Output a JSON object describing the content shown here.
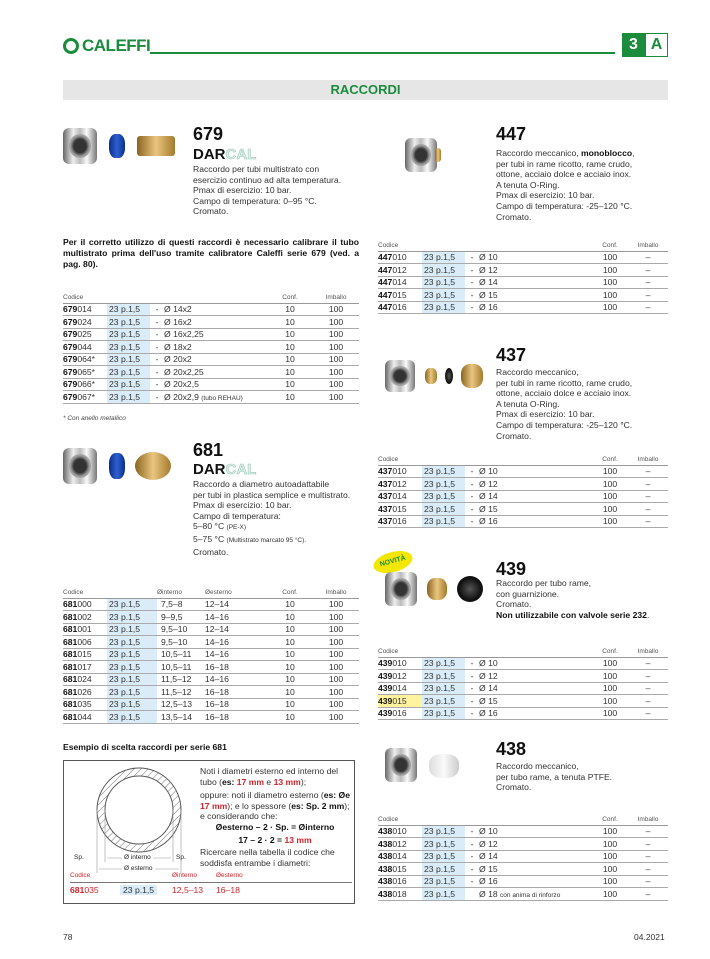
{
  "header": {
    "brand": "CALEFFI",
    "section_number": "3",
    "section_letter": "A",
    "band_title": "RACCORDI",
    "brand_color": "#1a8c3c"
  },
  "p679": {
    "number": "679",
    "brand_a": "DAR",
    "brand_b": "CAL",
    "desc": [
      "Raccordo per tubi multistrato con",
      "esercizio continuo ad alta temperatura.",
      "Pmax di esercizio: 10 bar.",
      "Campo di temperatura: 0–95 °C.",
      "Cromato."
    ],
    "note": "Per il corretto utilizzo di questi raccordi è necessario calibrare il tubo multistrato prima dell'uso tramite calibratore Caleffi serie 679 (ved. a pag. 80).",
    "headers": [
      "Codice",
      "Conf.",
      "Imballo"
    ],
    "rows": [
      [
        "679014",
        "23 p.1,5",
        "-",
        "Ø 14x2",
        "",
        "10",
        "100"
      ],
      [
        "679024",
        "23 p.1,5",
        "-",
        "Ø 16x2",
        "",
        "10",
        "100"
      ],
      [
        "679025",
        "23 p.1,5",
        "-",
        "Ø 16x2,25",
        "",
        "10",
        "100"
      ],
      [
        "679044",
        "23 p.1,5",
        "-",
        "Ø 18x2",
        "",
        "10",
        "100"
      ],
      [
        "679064*",
        "23 p.1,5",
        "-",
        "Ø 20x2",
        "",
        "10",
        "100"
      ],
      [
        "679065*",
        "23 p.1,5",
        "-",
        "Ø 20x2,25",
        "",
        "10",
        "100"
      ],
      [
        "679066*",
        "23 p.1,5",
        "-",
        "Ø 20x2,5",
        "",
        "10",
        "100"
      ],
      [
        "679067*",
        "23 p.1,5",
        "-",
        "Ø 20x2,9",
        "(tubo REHAU)",
        "10",
        "100"
      ]
    ],
    "footnote": "* Con anello metallico"
  },
  "p681": {
    "number": "681",
    "brand_a": "DAR",
    "brand_b": "CAL",
    "desc": [
      "Raccordo a diametro autoadattabile",
      "per tubi in plastica semplice e multistrato.",
      "Pmax di esercizio: 10 bar.",
      "Campo di temperatura:"
    ],
    "temp1": "5–80 °C",
    "temp1_note": "(PE-X)",
    "temp2": "5–75 °C",
    "temp2_note": "(Multistrato marcato 95 °C).",
    "cromato": "Cromato.",
    "headers": [
      "Codice",
      "Øinterno",
      "Øesterno",
      "Conf.",
      "Imballo"
    ],
    "rows": [
      [
        "681000",
        "23 p.1,5",
        "7,5–8",
        "12–14",
        "10",
        "100"
      ],
      [
        "681002",
        "23 p.1,5",
        "9–9,5",
        "14–16",
        "10",
        "100"
      ],
      [
        "681001",
        "23 p.1,5",
        "9,5–10",
        "12–14",
        "10",
        "100"
      ],
      [
        "681006",
        "23 p.1,5",
        "9,5–10",
        "14–16",
        "10",
        "100"
      ],
      [
        "681015",
        "23 p.1,5",
        "10,5–11",
        "14–16",
        "10",
        "100"
      ],
      [
        "681017",
        "23 p.1,5",
        "10,5–11",
        "16–18",
        "10",
        "100"
      ],
      [
        "681024",
        "23 p.1,5",
        "11,5–12",
        "14–16",
        "10",
        "100"
      ],
      [
        "681026",
        "23 p.1,5",
        "11,5–12",
        "16–18",
        "10",
        "100"
      ],
      [
        "681035",
        "23 p.1,5",
        "12,5–13",
        "16–18",
        "10",
        "100"
      ],
      [
        "681044",
        "23 p.1,5",
        "13,5–14",
        "16–18",
        "10",
        "100"
      ]
    ]
  },
  "example": {
    "title": "Esempio di scelta raccordi per serie 681",
    "l1": "Noti i diametri esterno ed interno del tubo (",
    "l1_es": "es:",
    "l1_a": "17 mm",
    "l1_e": " e ",
    "l1_b": "13 mm",
    "l1_end": ");",
    "l2": "oppure: noti il diametro esterno (",
    "l2_es": "es: Øe",
    "l2_a": "17 mm",
    "l2_mid": "); e lo spessore (",
    "l2_sp": "es: Sp. 2 mm",
    "l2_end": "); e considerando che:",
    "formula": "Øesterno – 2 · Sp. = Øinterno",
    "calc_a": "17 – 2 · 2 = ",
    "calc_b": "13 mm",
    "l3": "Ricercare nella tabella il codice che soddisfa entrambe i diametri:",
    "label_sp": "Sp.",
    "label_int": "Ø interno",
    "label_ext": "Ø esterno",
    "headers": [
      "Codice",
      "Øinterno",
      "Øesterno"
    ],
    "row": [
      "681035",
      "23 p.1,5",
      "12,5–13",
      "16–18"
    ]
  },
  "right": [
    {
      "number": "447",
      "desc_html": [
        "Raccordo meccanico, <b>monoblocco</b>,",
        "per tubi in rame ricotto, rame crudo,",
        "ottone, acciaio dolce e acciaio inox.",
        "A tenuta O-Ring.",
        "Pmax di esercizio: 10 bar.",
        "Campo di temperatura: -25–120 °C.",
        "Cromato."
      ],
      "rows": [
        [
          "447010",
          "23 p.1,5",
          "-",
          "Ø 10",
          "",
          "100",
          "–"
        ],
        [
          "447012",
          "23 p.1,5",
          "-",
          "Ø 12",
          "",
          "100",
          "–"
        ],
        [
          "447014",
          "23 p.1,5",
          "-",
          "Ø 14",
          "",
          "100",
          "–"
        ],
        [
          "447015",
          "23 p.1,5",
          "-",
          "Ø 15",
          "",
          "100",
          "–"
        ],
        [
          "447016",
          "23 p.1,5",
          "-",
          "Ø 16",
          "",
          "100",
          "–"
        ]
      ]
    },
    {
      "number": "437",
      "desc_html": [
        "Raccordo meccanico,",
        "per tubi in rame ricotto, rame crudo,",
        "ottone, acciaio dolce e acciaio inox.",
        "A tenuta O-Ring.",
        "Pmax di esercizio: 10 bar.",
        "Campo di temperatura: -25–120 °C.",
        "Cromato."
      ],
      "rows": [
        [
          "437010",
          "23 p.1,5",
          "-",
          "Ø 10",
          "",
          "100",
          "–"
        ],
        [
          "437012",
          "23 p.1,5",
          "-",
          "Ø 12",
          "",
          "100",
          "–"
        ],
        [
          "437014",
          "23 p.1,5",
          "-",
          "Ø 14",
          "",
          "100",
          "–"
        ],
        [
          "437015",
          "23 p.1,5",
          "-",
          "Ø 15",
          "",
          "100",
          "–"
        ],
        [
          "437016",
          "23 p.1,5",
          "-",
          "Ø 16",
          "",
          "100",
          "–"
        ]
      ]
    },
    {
      "number": "439",
      "badge": "NOVITÀ",
      "desc_html": [
        "Raccordo per tubo rame,",
        "con guarnizione.",
        "Cromato.",
        "<b>Non utilizzabile con valvole serie 232</b>."
      ],
      "rows": [
        [
          "439010",
          "23 p.1,5",
          "-",
          "Ø 10",
          "",
          "100",
          "–"
        ],
        [
          "439012",
          "23 p.1,5",
          "-",
          "Ø 12",
          "",
          "100",
          "–"
        ],
        [
          "439014",
          "23 p.1,5",
          "-",
          "Ø 14",
          "",
          "100",
          "–"
        ],
        [
          "439015",
          "23 p.1,5",
          "-",
          "Ø 15",
          "",
          "100",
          "–"
        ],
        [
          "439016",
          "23 p.1,5",
          "-",
          "Ø 16",
          "",
          "100",
          "–"
        ]
      ],
      "highlight_row": 3
    },
    {
      "number": "438",
      "desc_html": [
        "Raccordo meccanico,",
        "per tubo rame, a tenuta PTFE.",
        "Cromato."
      ],
      "rows": [
        [
          "438010",
          "23 p.1,5",
          "-",
          "Ø 10",
          "",
          "100",
          "–"
        ],
        [
          "438012",
          "23 p.1,5",
          "-",
          "Ø 12",
          "",
          "100",
          "–"
        ],
        [
          "438014",
          "23 p.1,5",
          "-",
          "Ø 14",
          "",
          "100",
          "–"
        ],
        [
          "438015",
          "23 p.1,5",
          "-",
          "Ø 15",
          "",
          "100",
          "–"
        ],
        [
          "438016",
          "23 p.1,5",
          "-",
          "Ø 16",
          "",
          "100",
          "–"
        ],
        [
          "438018",
          "23 p.1,5",
          "",
          "Ø 18",
          "con anima di rinforzo",
          "100",
          "–"
        ]
      ]
    }
  ],
  "right_headers": [
    "Codice",
    "Conf.",
    "Imballo"
  ],
  "footer": {
    "page": "78",
    "date": "04.2021"
  }
}
